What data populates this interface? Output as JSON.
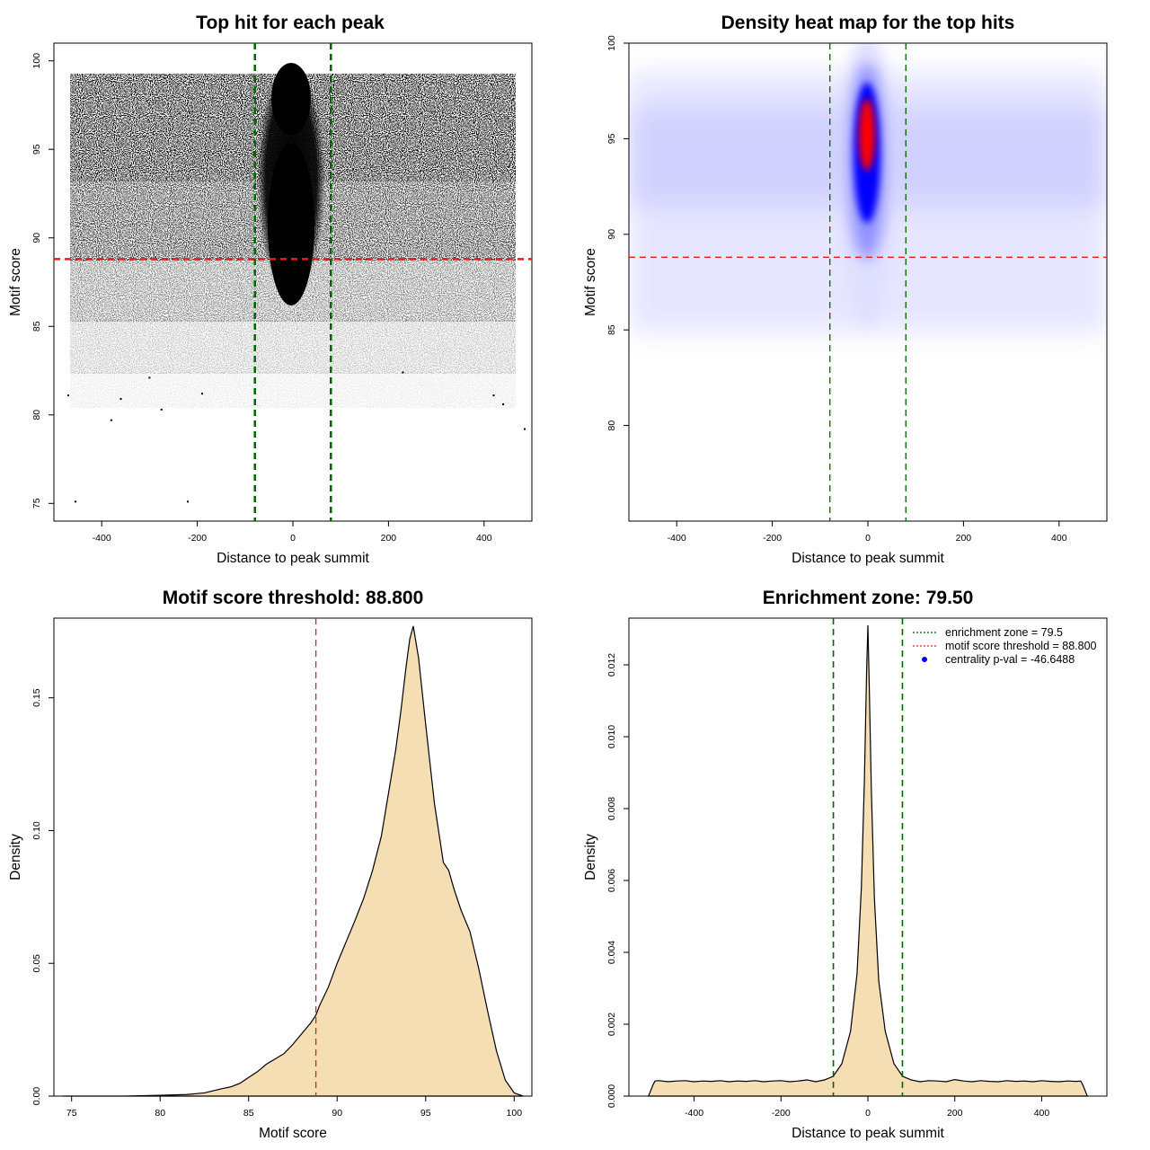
{
  "chart_data": [
    {
      "id": "p1",
      "type": "scatter",
      "title": "Top hit for each peak",
      "xlabel": "Distance to peak summit",
      "ylabel": "Motif score",
      "xlim": [
        -500,
        500
      ],
      "ylim": [
        74,
        101
      ],
      "xticks": [
        -400,
        -200,
        0,
        200,
        400
      ],
      "yticks": [
        75,
        80,
        85,
        90,
        95,
        100
      ],
      "vlines": [
        -79.5,
        79.5
      ],
      "hline": 88.8,
      "vline_color": "#006400",
      "hline_color": "#e02020",
      "point_color": "#000000",
      "points": [
        [
          -455,
          75.1
        ],
        [
          -220,
          75.1
        ],
        [
          -380,
          79.7
        ],
        [
          -275,
          80.3
        ],
        [
          485,
          79.2
        ],
        [
          -470,
          81.1
        ],
        [
          -360,
          80.9
        ],
        [
          -190,
          81.2
        ],
        [
          420,
          81.1
        ],
        [
          440,
          80.6
        ],
        [
          230,
          82.4
        ],
        [
          -300,
          82.1
        ]
      ],
      "grid": false
    },
    {
      "id": "p2",
      "type": "heatmap",
      "title": "Density heat map for the top hits",
      "xlabel": "Distance to peak summit",
      "ylabel": "Motif score",
      "xlim": [
        -500,
        500
      ],
      "ylim": [
        75,
        100
      ],
      "xticks": [
        -400,
        -200,
        0,
        200,
        400
      ],
      "yticks": [
        80,
        85,
        90,
        95,
        100
      ],
      "vlines": [
        -79.5,
        79.5
      ],
      "hline": 88.8,
      "vline_color": "#006400",
      "hline_color": "#e02020",
      "color_scale": [
        "#ffffff",
        "#0000ff",
        "#ff0000"
      ],
      "density_peak": {
        "x": 0,
        "y": 94.3
      },
      "grid": false
    },
    {
      "id": "p3",
      "type": "area",
      "title": "Motif score threshold: 88.800",
      "xlabel": "Motif score",
      "ylabel": "Density",
      "xlim": [
        74,
        101
      ],
      "ylim": [
        0,
        0.18
      ],
      "xticks": [
        75,
        80,
        85,
        90,
        95,
        100
      ],
      "yticks": [
        0.0,
        0.05,
        0.1,
        0.15
      ],
      "ytick_labels": [
        "0.00",
        "0.05",
        "0.10",
        "0.15"
      ],
      "vline": 88.8,
      "vline_color": "#e02020",
      "fill_color": "#f5deb3",
      "x": [
        74.5,
        78,
        80,
        81.5,
        82.5,
        83,
        83.5,
        84,
        84.5,
        85,
        85.5,
        86,
        86.5,
        87,
        87.5,
        88,
        88.5,
        88.8,
        89,
        89.5,
        90,
        90.5,
        91,
        91.5,
        92,
        92.5,
        93,
        93.3,
        93.6,
        93.9,
        94.1,
        94.3,
        94.6,
        95,
        95.5,
        96,
        96.3,
        96.6,
        97,
        97.5,
        98,
        98.5,
        99,
        99.5,
        100,
        100.5
      ],
      "y": [
        0.0,
        0.0,
        0.0003,
        0.0006,
        0.0012,
        0.002,
        0.0028,
        0.0035,
        0.0048,
        0.007,
        0.0092,
        0.012,
        0.014,
        0.016,
        0.0195,
        0.0235,
        0.0275,
        0.0305,
        0.034,
        0.041,
        0.05,
        0.058,
        0.066,
        0.0745,
        0.085,
        0.098,
        0.118,
        0.13,
        0.145,
        0.162,
        0.172,
        0.177,
        0.165,
        0.14,
        0.11,
        0.088,
        0.085,
        0.078,
        0.07,
        0.062,
        0.048,
        0.032,
        0.017,
        0.006,
        0.0012,
        0.0
      ]
    },
    {
      "id": "p4",
      "type": "area",
      "title": "Enrichment zone: 79.50",
      "xlabel": "Distance to peak summit",
      "ylabel": "Density",
      "xlim": [
        -550,
        550
      ],
      "ylim": [
        0,
        0.0133
      ],
      "xticks": [
        -400,
        -200,
        0,
        200,
        400
      ],
      "yticks": [
        0.0,
        0.002,
        0.004,
        0.006,
        0.008,
        0.01,
        0.012
      ],
      "ytick_labels": [
        "0.000",
        "0.002",
        "0.004",
        "0.006",
        "0.008",
        "0.010",
        "0.012"
      ],
      "vlines": [
        -79.5,
        79.5
      ],
      "vline_color": "#006400",
      "fill_color": "#f5deb3",
      "x": [
        -505,
        -495,
        -490,
        -480,
        -460,
        -440,
        -420,
        -400,
        -380,
        -360,
        -340,
        -320,
        -300,
        -280,
        -260,
        -240,
        -220,
        -200,
        -180,
        -160,
        -140,
        -120,
        -100,
        -80,
        -60,
        -40,
        -25,
        -15,
        -8,
        -3,
        0,
        3,
        8,
        15,
        25,
        40,
        60,
        80,
        100,
        120,
        140,
        160,
        180,
        200,
        220,
        240,
        260,
        280,
        300,
        320,
        340,
        360,
        380,
        400,
        420,
        440,
        460,
        480,
        490,
        495,
        505
      ],
      "y": [
        0.0,
        0.0003,
        0.00042,
        0.00043,
        0.0004,
        0.00042,
        0.00043,
        0.0004,
        0.00042,
        0.00041,
        0.00043,
        0.0004,
        0.00042,
        0.00041,
        0.00043,
        0.0004,
        0.00042,
        0.00043,
        0.0004,
        0.00042,
        0.00045,
        0.0004,
        0.00045,
        0.00055,
        0.0009,
        0.0018,
        0.0034,
        0.0058,
        0.0088,
        0.0118,
        0.0131,
        0.0115,
        0.0085,
        0.0055,
        0.0032,
        0.0018,
        0.0009,
        0.00055,
        0.00045,
        0.0004,
        0.00043,
        0.00042,
        0.0004,
        0.00046,
        0.00042,
        0.0004,
        0.00043,
        0.00041,
        0.0004,
        0.00043,
        0.00041,
        0.00042,
        0.0004,
        0.00043,
        0.00041,
        0.0004,
        0.00042,
        0.00041,
        0.00042,
        0.0003,
        0.0
      ],
      "legend": {
        "position": "top-right",
        "entries": [
          {
            "label": "enrichment zone = 79.5",
            "style": "dotted",
            "color": "#006400"
          },
          {
            "label": "motif score threshold = 88.800",
            "style": "dotted",
            "color": "#e02020"
          },
          {
            "label": "centrality p-val = -46.6488",
            "style": "point",
            "color": "#0000ff"
          }
        ]
      }
    }
  ]
}
